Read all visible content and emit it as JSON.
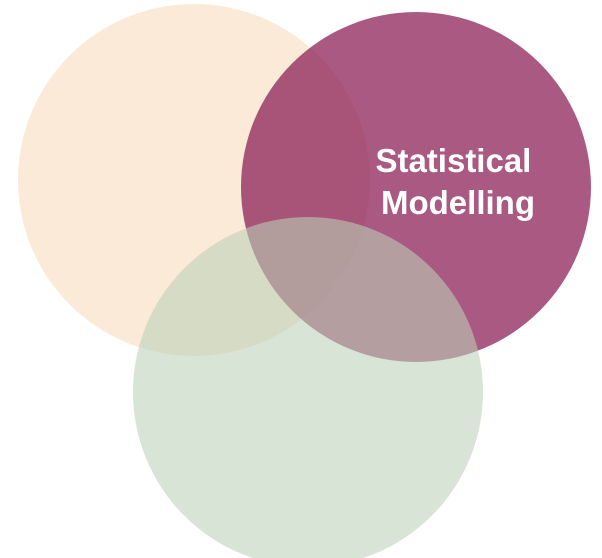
{
  "diagram": {
    "type": "venn",
    "circles": [
      {
        "id": "peach",
        "label": "",
        "color": "#f8d9b8"
      },
      {
        "id": "plum",
        "label_lines": [
          "Statistical",
          "Modelling"
        ],
        "color": "#8c2258"
      },
      {
        "id": "sage",
        "label": "",
        "color": "#bcd0b6"
      }
    ]
  }
}
